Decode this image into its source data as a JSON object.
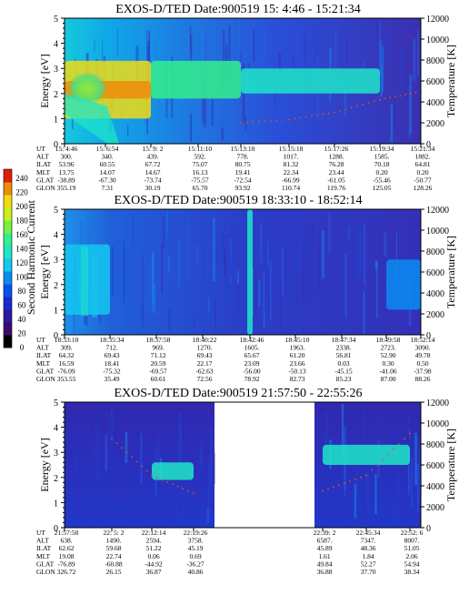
{
  "axis_text": {
    "energy_label": "Energy [eV]",
    "temp_label": "Temperature [K]",
    "energy_ticks": [
      "0",
      "1",
      "2",
      "3",
      "4",
      "5"
    ],
    "temp_ticks": [
      "0",
      "2000",
      "4000",
      "6000",
      "8000",
      "10000",
      "12000"
    ]
  },
  "colorbar": {
    "label": "Second Harmonic Current",
    "ticks": [
      "0",
      "20",
      "40",
      "60",
      "80",
      "100",
      "120",
      "140",
      "160",
      "180",
      "200",
      "220",
      "240"
    ],
    "colors": [
      "#000000",
      "#3c0a6e",
      "#2a1aa0",
      "#1a2ad0",
      "#0a50f0",
      "#0a8cf0",
      "#14c8f0",
      "#1ee6c8",
      "#32f08c",
      "#78f046",
      "#c8f01e",
      "#f0dc14",
      "#f08c0a",
      "#e01e0a"
    ]
  },
  "panels": [
    {
      "title": "EXOS-D/TED   Date:900519  15: 4:46 - 15:21:34",
      "orbit_labels": [
        "UT",
        "ALT",
        "ILAT",
        "MLT",
        "GLAT",
        "GLON"
      ],
      "orbit_columns": [
        [
          "15: 4:46",
          "300.",
          "53.96",
          "13.75",
          "-38.89",
          "355.19"
        ],
        [
          "15: 6:54",
          "340.",
          "60.55",
          "14.07",
          "-67.30",
          "7.31"
        ],
        [
          "15: 9: 2",
          "439.",
          "67.72",
          "14.67",
          "-73.74",
          "30.19"
        ],
        [
          "15:11:10",
          "592.",
          "75.07",
          "16.13",
          "-75.57",
          "65.70"
        ],
        [
          "15:13:10",
          "778.",
          "80.75",
          "19.41",
          "-72.54",
          "93.92"
        ],
        [
          "15:15:18",
          "1017.",
          "81.32",
          "22.34",
          "-66.99",
          "110.74"
        ],
        [
          "15:17:26",
          "1288.",
          "76.28",
          "23.44",
          "-61.05",
          "119.76"
        ],
        [
          "15:19:34",
          "1585.",
          "70.18",
          "0.20",
          "-55.46",
          "125.05"
        ],
        [
          "15:21:34",
          "1882.",
          "64.81",
          "0.20",
          "-50.77",
          "128.26"
        ]
      ]
    },
    {
      "title": "EXOS-D/TED   Date:900519  18:33:10 - 18:52:14",
      "orbit_labels": [
        "UT",
        "ALT",
        "ILAT",
        "MLT",
        "GLAT",
        "GLON"
      ],
      "orbit_columns": [
        [
          "18:33:10",
          "309.",
          "64.32",
          "16.59",
          "-76.09",
          "353.55"
        ],
        [
          "18:35:34",
          "712.",
          "69.43",
          "18.41",
          "-75.32",
          "35.49"
        ],
        [
          "18:37:58",
          "969.",
          "71.12",
          "20.59",
          "-69.57",
          "60.61"
        ],
        [
          "18:40:22",
          "1270.",
          "69.43",
          "22.17",
          "-62.63",
          "72.56"
        ],
        [
          "18:42:46",
          "1605.",
          "65.67",
          "23.09",
          "-56.00",
          "78.92"
        ],
        [
          "18:45:10",
          "1963.",
          "61.20",
          "23.66",
          "-50.13",
          "82.73"
        ],
        [
          "18:47:34",
          "2338.",
          "56.81",
          "0.03",
          "-45.15",
          "85.23"
        ],
        [
          "18:49:58",
          "2723.",
          "52.90",
          "0.30",
          "-41.06",
          "87.00"
        ],
        [
          "18:52:14",
          "3090.",
          "49.78",
          "0.50",
          "-37.98",
          "88.26"
        ]
      ]
    },
    {
      "title": "EXOS-D/TED   Date:900519  21:57:50 - 22:55:26",
      "orbit_labels": [
        "UT",
        "ALT",
        "ILAT",
        "MLT",
        "GLAT",
        "GLON"
      ],
      "orbit_columns": [
        [
          "21:57:50",
          "638.",
          "62.62",
          "19.08",
          "-76.89",
          "326.72"
        ],
        [
          "22: 5: 2",
          "1490.",
          "59.68",
          "22.74",
          "-60.88",
          "26.15"
        ],
        [
          "22:12:14",
          "2594.",
          "51.22",
          "0.06",
          "-44.92",
          "36.87"
        ],
        [
          "22:19:26",
          "3758.",
          "45.19",
          "0.69",
          "-36.27",
          "40.86"
        ],
        [
          "22:39: 2",
          "6587.",
          "45.89",
          "1.61",
          "49.84",
          "36.88"
        ],
        [
          "22:45:34",
          "7347.",
          "48.36",
          "1.84",
          "52.27",
          "37.70"
        ],
        [
          "22:52: 6",
          "8007.",
          "51.05",
          "2.06",
          "54.94",
          "38.34"
        ]
      ]
    }
  ],
  "chart_data": [
    {
      "type": "heatmap",
      "title": "EXOS-D/TED   Date:900519  15: 4:46 - 15:21:34",
      "xlabel": "",
      "ylabel": "Energy [eV]",
      "y2label": "Temperature [K]",
      "x": [
        "15: 4:46",
        "15: 6:54",
        "15: 9: 2",
        "15:11:10",
        "15:13:10",
        "15:15:18",
        "15:17:26",
        "15:19:34",
        "15:21:34"
      ],
      "ylim": [
        0,
        5
      ],
      "y2lim": [
        0,
        12000
      ],
      "zlim": [
        0,
        240
      ],
      "bands": [
        {
          "x_start": "15: 4:46",
          "x_end": "15: 9: 2",
          "e_min": 1.0,
          "e_max": 3.3,
          "level": 200
        },
        {
          "x_start": "15: 4:46",
          "x_end": "15: 9: 2",
          "e_min": 1.8,
          "e_max": 2.5,
          "level": 215
        },
        {
          "x_start": "15: 9: 2",
          "x_end": "15:13:10",
          "e_min": 1.8,
          "e_max": 3.3,
          "level": 150
        },
        {
          "x_start": "15:13:10",
          "x_end": "15:19:34",
          "e_min": 2.0,
          "e_max": 3.0,
          "level": 130
        }
      ],
      "temperature_points": [
        {
          "x": "15:13:10",
          "y": 2000
        },
        {
          "x": "15:15:18",
          "y": 2300
        },
        {
          "x": "15:17:26",
          "y": 3000
        },
        {
          "x": "15:19:34",
          "y": 4200
        },
        {
          "x": "15:21:34",
          "y": 5000
        }
      ]
    },
    {
      "type": "heatmap",
      "title": "EXOS-D/TED   Date:900519  18:33:10 - 18:52:14",
      "xlabel": "",
      "ylabel": "Energy [eV]",
      "y2label": "Temperature [K]",
      "x": [
        "18:33:10",
        "18:35:34",
        "18:37:58",
        "18:40:22",
        "18:42:46",
        "18:45:10",
        "18:47:34",
        "18:49:58",
        "18:52:14"
      ],
      "ylim": [
        0,
        5
      ],
      "y2lim": [
        0,
        12000
      ],
      "zlim": [
        0,
        240
      ],
      "bands": [
        {
          "x_start": "18:33:10",
          "x_end": "18:35:34",
          "e_min": 0.8,
          "e_max": 3.6,
          "level": 110
        },
        {
          "x_start": "18:42:46",
          "x_end": "18:42:46",
          "e_min": 0.0,
          "e_max": 5.0,
          "level": 120
        },
        {
          "x_start": "18:49:58",
          "x_end": "18:52:14",
          "e_min": 1.0,
          "e_max": 3.0,
          "level": 100
        }
      ],
      "temperature_points": []
    },
    {
      "type": "heatmap",
      "title": "EXOS-D/TED   Date:900519  21:57:50 - 22:55:26",
      "xlabel": "",
      "ylabel": "Energy [eV]",
      "y2label": "Temperature [K]",
      "x": [
        "21:57:50",
        "22: 5: 2",
        "22:12:14",
        "22:19:26",
        "22:39: 2",
        "22:45:34",
        "22:52: 6"
      ],
      "ylim": [
        0,
        5
      ],
      "y2lim": [
        0,
        12000
      ],
      "zlim": [
        0,
        240
      ],
      "data_gap": [
        "22:19:26",
        "22:39: 2"
      ],
      "bands": [
        {
          "x_start": "22:12:14",
          "x_end": "22:19:26",
          "e_min": 1.9,
          "e_max": 2.6,
          "level": 130
        },
        {
          "x_start": "22:39: 2",
          "x_end": "22:52: 6",
          "e_min": 2.5,
          "e_max": 3.3,
          "level": 120
        }
      ],
      "temperature_points": [
        {
          "x": "22: 5: 2",
          "y": 8500
        },
        {
          "x": "22:12:14",
          "y": 5000
        },
        {
          "x": "22:19:26",
          "y": 3300
        },
        {
          "x": "22:39: 2",
          "y": 3500
        },
        {
          "x": "22:45:34",
          "y": 5000
        },
        {
          "x": "22:52: 6",
          "y": 9000
        }
      ]
    }
  ]
}
